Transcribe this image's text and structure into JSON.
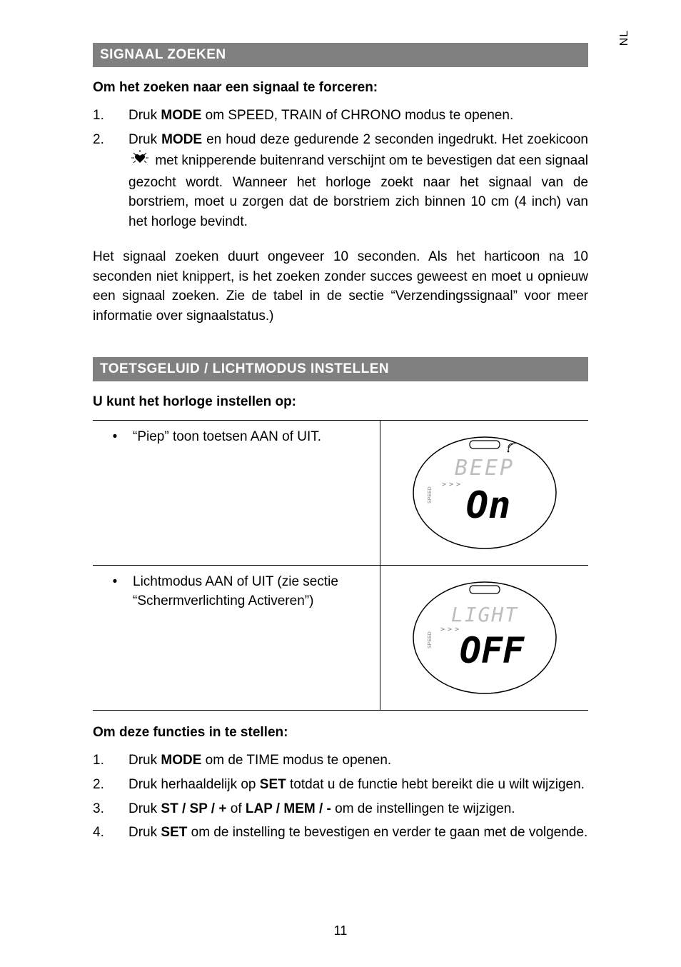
{
  "lang_tab": "NL",
  "section1": {
    "title": "SIGNAAL ZOEKEN",
    "intro": "Om het zoeken naar een signaal te forceren:",
    "items": [
      {
        "num": "1.",
        "pre": "Druk ",
        "bold": "MODE",
        "post": " om SPEED, TRAIN of CHRONO modus te openen."
      },
      {
        "num": "2.",
        "pre": "Druk ",
        "bold": "MODE",
        "mid": " en houd deze gedurende 2 seconden ingedrukt. Het zoekicoon ",
        "post": " met knipperende buitenrand verschijnt om te bevestigen dat een signaal gezocht wordt. Wanneer het horloge zoekt naar het signaal van de borstriem, moet u zorgen dat de borstriem zich binnen 10 cm (4 inch) van het horloge bevindt."
      }
    ],
    "para": "Het signaal zoeken duurt ongeveer 10 seconden. Als het harticoon na 10 seconden niet knippert, is het zoeken zonder succes geweest en moet u opnieuw een signaal zoeken. Zie de tabel in de sectie “Verzendingssignaal” voor meer informatie over signaalstatus.)"
  },
  "section2": {
    "title": "TOETSGELUID / LICHTMODUS INSTELLEN",
    "intro": "U kunt het horloge instellen op:",
    "rows": [
      {
        "text": "“Piep” toon toetsen AAN of UIT.",
        "display_top": "BEEP",
        "display_main": "On",
        "speed_label": "SPEED"
      },
      {
        "text": "Lichtmodus AAN of UIT (zie sectie “Schermverlichting Activeren”)",
        "display_top": "LIGHT",
        "display_main": "OFF",
        "speed_label": "SPEED"
      }
    ],
    "intro2": "Om deze functies in te stellen:",
    "items2": [
      {
        "num": "1.",
        "text": "Druk <b>MODE</b> om de TIME modus te openen."
      },
      {
        "num": "2.",
        "text": "Druk herhaaldelijk op <b>SET</b> totdat u de functie hebt bereikt die u wilt wijzigen."
      },
      {
        "num": "3.",
        "text": "Druk <b>ST / SP / +</b> of <b>LAP / MEM / -</b> om de instellingen te wijzigen."
      },
      {
        "num": "4.",
        "text": "Druk <b>SET</b> om de instelling te bevestigen en verder te gaan met de volgende."
      }
    ]
  },
  "page_num": "11",
  "colors": {
    "header_bg": "#808080",
    "header_fg": "#ffffff",
    "text": "#000000",
    "lcd_gray": "#bdbdbd"
  }
}
